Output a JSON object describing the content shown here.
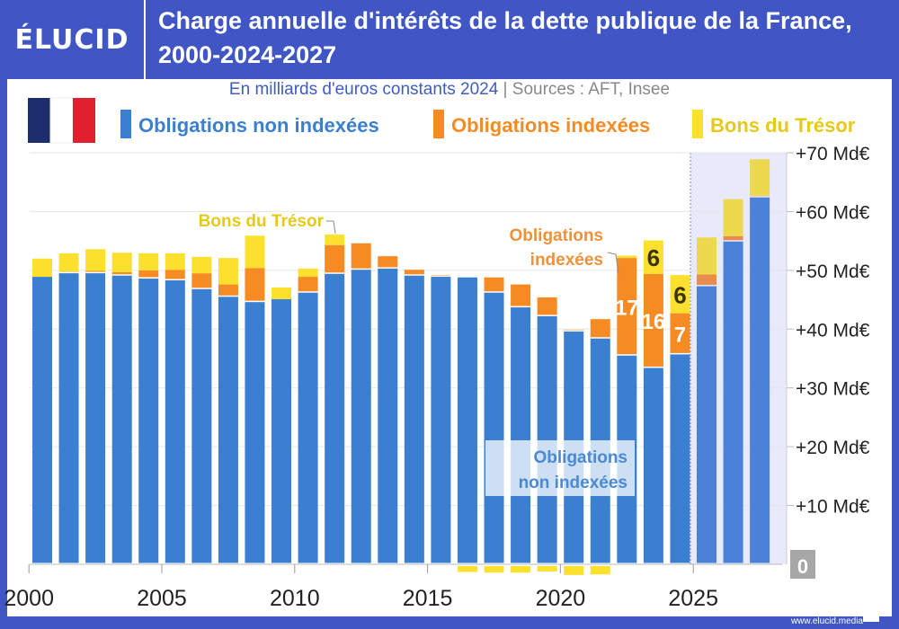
{
  "header": {
    "logo": "ÉLUCID",
    "title": "Charge annuelle d'intérêts de la dette publique de la France, 2000-2024-2027"
  },
  "subtitle": {
    "unit": "En milliards d'euros constants 2024",
    "separator": "|",
    "sources": "Sources : AFT, Insee"
  },
  "footer": {
    "url": "www.elucid.media"
  },
  "colors": {
    "header": "#3f56c4",
    "blue": "#3a7fd0",
    "orange": "#f68b24",
    "yellow": "#fbe12e",
    "projection": "#e8eafc"
  },
  "chart_data": {
    "type": "bar",
    "stacked": true,
    "title": "Charge annuelle d'intérêts de la dette publique de la France, 2000-2024-2027",
    "categories": [
      2000,
      2001,
      2002,
      2003,
      2004,
      2005,
      2006,
      2007,
      2008,
      2009,
      2010,
      2011,
      2012,
      2013,
      2014,
      2015,
      2016,
      2017,
      2018,
      2019,
      2020,
      2021,
      2022,
      2023,
      2024,
      2025,
      2026,
      2027
    ],
    "series": [
      {
        "name": "Obligations non indexées",
        "color": "#3a7fd0",
        "values": [
          48.9,
          49.5,
          49.5,
          49.1,
          48.6,
          48.3,
          46.8,
          45.5,
          44.6,
          45.1,
          46.2,
          49.4,
          50.1,
          50.3,
          49.1,
          48.9,
          48.8,
          46.2,
          43.7,
          42.2,
          39.6,
          38.4,
          35.5,
          33.4,
          35.7,
          47.3,
          54.9,
          62.4
        ]
      },
      {
        "name": "Obligations indexées",
        "color": "#f68b24",
        "values": [
          0,
          0.3,
          0.4,
          0.6,
          1.4,
          1.8,
          2.7,
          2.1,
          5.8,
          0,
          2.7,
          4.9,
          4.5,
          2.1,
          1.0,
          0.3,
          0,
          2.6,
          3.9,
          3.2,
          0.3,
          3.3,
          16.6,
          16,
          7,
          2.0,
          0.9,
          0.3
        ]
      },
      {
        "name": "Bons du Trésor",
        "color": "#fbe12e",
        "values": [
          3.1,
          3.1,
          3.7,
          3.3,
          2.9,
          2.8,
          2.8,
          4.5,
          5.5,
          2.0,
          1.4,
          1.8,
          0,
          0,
          0,
          0,
          -0.7,
          -0.8,
          -0.8,
          -0.6,
          -1.2,
          -1.1,
          0.4,
          5.7,
          6.5,
          6.3,
          6.3,
          6.2
        ]
      }
    ],
    "data_labels": [
      {
        "year": 2022,
        "series": "Obligations indexées",
        "text": "17"
      },
      {
        "year": 2023,
        "series": "Obligations indexées",
        "text": "16"
      },
      {
        "year": 2023,
        "series": "Bons du Trésor",
        "text": "6"
      },
      {
        "year": 2024,
        "series": "Obligations indexées",
        "text": "7"
      },
      {
        "year": 2024,
        "series": "Bons du Trésor",
        "text": "6"
      }
    ],
    "annotations": {
      "bons": "Bons du Trésor",
      "indexees": [
        "Obligations",
        "indexées"
      ],
      "non_indexees": [
        "Obligations",
        "non indexées"
      ]
    },
    "projection_from": 2025,
    "ylim": [
      0,
      70
    ],
    "yticks": [
      {
        "v": 10,
        "t": "+10 Md€"
      },
      {
        "v": 20,
        "t": "+20 Md€"
      },
      {
        "v": 30,
        "t": "+30 Md€"
      },
      {
        "v": 40,
        "t": "+40 Md€"
      },
      {
        "v": 50,
        "t": "+50 Md€"
      },
      {
        "v": 60,
        "t": "+60 Md€"
      },
      {
        "v": 70,
        "t": "+70 Md€"
      }
    ],
    "zero_label": "0",
    "xticks": [
      2000,
      2005,
      2010,
      2015,
      2020,
      2025
    ],
    "legend_placement": "top",
    "grid": true
  }
}
